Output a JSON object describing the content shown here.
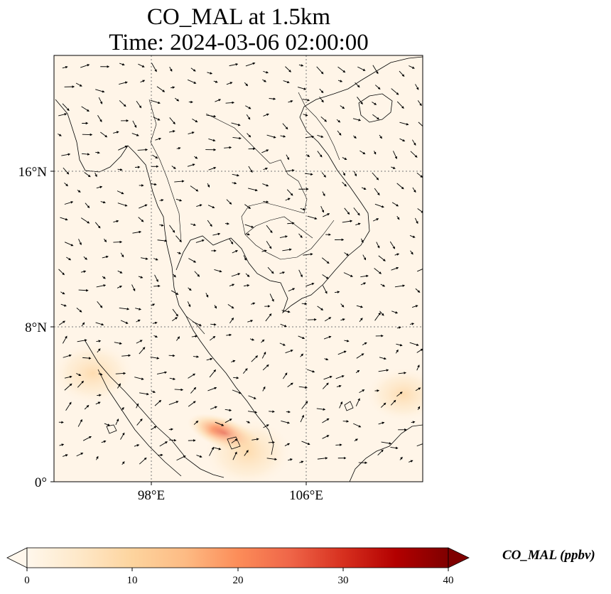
{
  "title": {
    "line1": "CO_MAL at 1.5km",
    "line2": "Time: 2024-03-06 02:00:00"
  },
  "map": {
    "extent": {
      "lon_min": 93,
      "lon_max": 112,
      "lat_min": 0,
      "lat_max": 22
    },
    "gridlines": {
      "lon": [
        98,
        106
      ],
      "lat": [
        8,
        16
      ],
      "style": "dotted"
    },
    "lat_ticks": [
      {
        "value": 16,
        "label": "16°N"
      },
      {
        "value": 8,
        "label": "8°N"
      },
      {
        "value": 0,
        "label": "0°"
      }
    ],
    "lon_ticks": [
      {
        "value": 98,
        "label": "98°E"
      },
      {
        "value": 106,
        "label": "106°E"
      }
    ],
    "background_color": "#fff5e8",
    "hotspots": [
      {
        "lon": 95.0,
        "lat": 5.6,
        "value": 8
      },
      {
        "lon": 101.8,
        "lat": 2.5,
        "value": 25
      },
      {
        "lon": 103.0,
        "lat": 1.5,
        "value": 10
      },
      {
        "lon": 111.0,
        "lat": 4.5,
        "value": 5
      }
    ],
    "wind_vectors": "quiver arrows (estimated)"
  },
  "colorbar": {
    "min": 0,
    "max": 40,
    "ticks": [
      "0",
      "10",
      "20",
      "30",
      "40"
    ],
    "label": "CO_MAL (ppbv)",
    "colormap": "OrRd",
    "extend": "both",
    "stops": [
      "#fff7ec",
      "#fee8c8",
      "#fdd49e",
      "#fdbb84",
      "#fc8d59",
      "#ef6548",
      "#d7301f",
      "#b30000",
      "#7f0000"
    ]
  }
}
